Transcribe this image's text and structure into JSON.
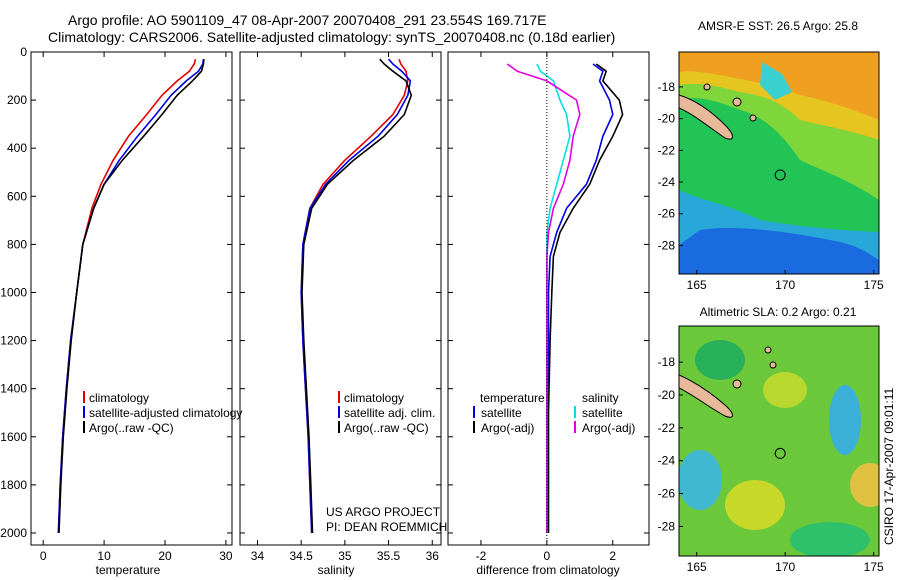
{
  "header": {
    "line1": "Argo profile: AO 5901109_47 08-Apr-2007 20070408_291 23.554S 169.717E",
    "line2": "Climatology: CARS2006. Satellite-adjusted climatology: synTS_20070408.nc (0.18d earlier)"
  },
  "credit": {
    "project": "US ARGO PROJECT",
    "pi": "PI: DEAN ROEMMICH",
    "stamp": "CSIRO 17-Apr-2007 09:01:11"
  },
  "colors": {
    "climatology": "#e00000",
    "satellite": "#0000e0",
    "argo": "#000000",
    "sat_salinity": "#00e0e0",
    "argo_salinity": "#e000e0",
    "land": "#e8b89a"
  },
  "chart_data": [
    {
      "type": "line",
      "xlabel": "temperature",
      "xlim": [
        -2,
        31
      ],
      "ylim": [
        2050,
        0
      ],
      "xticks": [
        0,
        10,
        20,
        30
      ],
      "yticks": [
        0,
        200,
        400,
        600,
        800,
        1000,
        1200,
        1400,
        1600,
        1800,
        2000
      ],
      "legend": [
        "climatology",
        "satellite-adjusted climatology",
        "Argo(..raw -QC)"
      ],
      "series": [
        {
          "name": "climatology",
          "color": "#e00000",
          "x": [
            25.0,
            24.8,
            24.0,
            22.0,
            19.5,
            17.0,
            14.0,
            11.5,
            9.5,
            8.0,
            6.5,
            5.5,
            4.5,
            3.8,
            3.2,
            2.8,
            2.5
          ],
          "y": [
            30,
            50,
            80,
            120,
            180,
            260,
            350,
            450,
            550,
            650,
            800,
            1000,
            1200,
            1400,
            1600,
            1800,
            2000
          ]
        },
        {
          "name": "satellite-adjusted climatology",
          "color": "#0000e0",
          "x": [
            26.3,
            26.2,
            25.5,
            23.5,
            21.0,
            18.5,
            15.5,
            12.5,
            10.0,
            8.3,
            6.5,
            5.5,
            4.5,
            3.8,
            3.2,
            2.8,
            2.5
          ],
          "y": [
            30,
            50,
            80,
            120,
            180,
            260,
            350,
            450,
            550,
            650,
            800,
            1000,
            1200,
            1400,
            1600,
            1800,
            2000
          ]
        },
        {
          "name": "Argo(..raw -QC)",
          "color": "#000000",
          "x": [
            26.4,
            26.3,
            26.0,
            24.5,
            22.0,
            19.5,
            16.5,
            13.0,
            10.0,
            8.3,
            6.5,
            5.5,
            4.6,
            3.9,
            3.3,
            2.9,
            2.6
          ],
          "y": [
            30,
            50,
            80,
            120,
            180,
            260,
            350,
            450,
            550,
            650,
            800,
            1000,
            1200,
            1400,
            1600,
            1800,
            2000
          ]
        }
      ]
    },
    {
      "type": "line",
      "xlabel": "salinity",
      "xlim": [
        33.8,
        36.1
      ],
      "ylim": [
        2050,
        0
      ],
      "xticks": [
        34,
        34.5,
        35,
        35.5,
        36
      ],
      "legend": [
        "climatology",
        "satellite adj. clim.",
        "Argo(..raw -QC)"
      ],
      "series": [
        {
          "name": "climatology",
          "color": "#e00000",
          "x": [
            35.62,
            35.64,
            35.7,
            35.72,
            35.68,
            35.55,
            35.3,
            35.0,
            34.75,
            34.6,
            34.52,
            34.5,
            34.52,
            34.55,
            34.58,
            34.6,
            34.62
          ],
          "y": [
            30,
            50,
            80,
            120,
            180,
            260,
            350,
            450,
            550,
            650,
            800,
            1000,
            1200,
            1400,
            1600,
            1800,
            2000
          ]
        },
        {
          "name": "satellite adj. clim.",
          "color": "#0000e0",
          "x": [
            35.5,
            35.55,
            35.65,
            35.75,
            35.72,
            35.6,
            35.38,
            35.05,
            34.78,
            34.6,
            34.52,
            34.5,
            34.52,
            34.55,
            34.58,
            34.6,
            34.62
          ],
          "y": [
            30,
            50,
            80,
            120,
            180,
            260,
            350,
            450,
            550,
            650,
            800,
            1000,
            1200,
            1400,
            1600,
            1800,
            2000
          ]
        },
        {
          "name": "Argo(..raw -QC)",
          "color": "#000000",
          "x": [
            35.4,
            35.45,
            35.55,
            35.7,
            35.76,
            35.68,
            35.45,
            35.1,
            34.8,
            34.62,
            34.53,
            34.51,
            34.53,
            34.56,
            34.59,
            34.61,
            34.63
          ],
          "y": [
            30,
            50,
            80,
            120,
            180,
            260,
            350,
            450,
            550,
            650,
            800,
            1000,
            1200,
            1400,
            1600,
            1800,
            2000
          ]
        }
      ]
    },
    {
      "type": "line",
      "xlabel": "difference from climatology",
      "xlim": [
        -3,
        3.1
      ],
      "ylim": [
        2050,
        0
      ],
      "xticks": [
        -2,
        0,
        2
      ],
      "legend_groups": [
        {
          "title": "temperature",
          "items": [
            "satellite",
            "Argo(-adj)"
          ]
        },
        {
          "title": "salinity",
          "items": [
            "satellite",
            "Argo(-adj)"
          ]
        }
      ],
      "series": [
        {
          "name": "temperature satellite",
          "color": "#0000e0",
          "x": [
            1.4,
            1.7,
            1.6,
            1.9,
            2.0,
            1.7,
            1.5,
            1.2,
            0.6,
            0.3,
            0.1,
            0.05,
            0.05,
            0.0,
            0.0,
            0.0
          ],
          "y": [
            50,
            80,
            120,
            200,
            260,
            350,
            450,
            550,
            650,
            750,
            850,
            1000,
            1200,
            1500,
            1800,
            2000
          ]
        },
        {
          "name": "temperature Argo(-adj)",
          "color": "#000000",
          "x": [
            1.5,
            1.8,
            1.7,
            2.2,
            2.3,
            2.0,
            1.6,
            1.3,
            0.8,
            0.4,
            0.2,
            0.15,
            0.1,
            0.05,
            0.05,
            0.05
          ],
          "y": [
            50,
            80,
            120,
            200,
            260,
            350,
            450,
            550,
            650,
            750,
            850,
            1000,
            1200,
            1500,
            1800,
            2000
          ]
        },
        {
          "name": "salinity satellite",
          "color": "#00e0e0",
          "x": [
            -0.3,
            -0.2,
            0.2,
            0.4,
            0.6,
            0.7,
            0.5,
            0.3,
            0.1,
            0.0,
            0.0,
            0.0,
            0.0,
            0.0,
            0.0,
            0.0
          ],
          "y": [
            50,
            80,
            120,
            200,
            260,
            350,
            450,
            550,
            650,
            750,
            850,
            1000,
            1200,
            1500,
            1800,
            2000
          ]
        },
        {
          "name": "salinity Argo(-adj)",
          "color": "#e000e0",
          "x": [
            -1.2,
            -0.9,
            0.0,
            0.9,
            1.0,
            0.8,
            0.7,
            0.5,
            0.2,
            0.05,
            0.0,
            0.0,
            0.0,
            0.0,
            0.0,
            0.0
          ],
          "y": [
            50,
            80,
            120,
            200,
            260,
            350,
            450,
            550,
            650,
            750,
            850,
            1000,
            1200,
            1500,
            1800,
            2000
          ]
        }
      ]
    },
    {
      "type": "heatmap",
      "title": "AMSR-E SST: 26.5 Argo: 25.8",
      "xlim": [
        164,
        175.3
      ],
      "ylim": [
        -29.8,
        -15.8
      ],
      "xticks": [
        165,
        170,
        175
      ],
      "yticks": [
        -18,
        -20,
        -22,
        -24,
        -26,
        -28
      ],
      "profile_location": {
        "lon": 169.717,
        "lat": -23.554
      }
    },
    {
      "type": "heatmap",
      "title": "Altimetric SLA: 0.2 Argo: 0.21",
      "xlim": [
        164,
        175.3
      ],
      "ylim": [
        -29.8,
        -15.8
      ],
      "xticks": [
        165,
        170,
        175
      ],
      "yticks": [
        -18,
        -20,
        -22,
        -24,
        -26,
        -28
      ],
      "profile_location": {
        "lon": 169.717,
        "lat": -23.554
      }
    }
  ]
}
